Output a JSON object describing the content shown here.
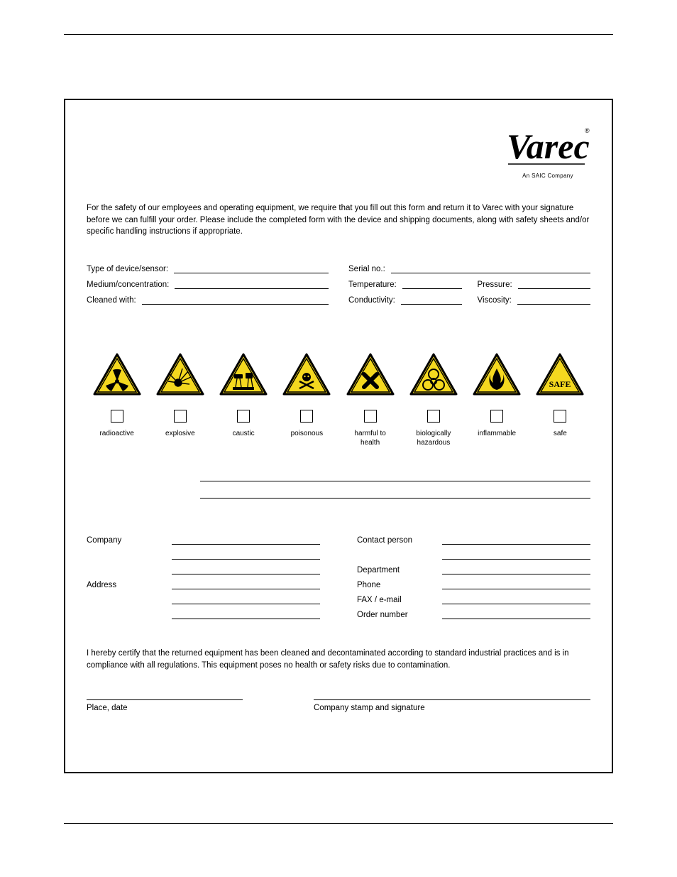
{
  "logo": {
    "word": "Varec",
    "tagline": "An SAIC Company"
  },
  "intro": "For the safety of our employees and operating equipment, we require that you fill out this form and return it to Varec with your signature before we can fulfill your order. Please include the completed form with the device and shipping documents, along with safety sheets and/or specific handling instructions if appropriate.",
  "fields": {
    "left": [
      "Type of device/sensor:",
      "Medium/concentration:",
      "Cleaned with:"
    ],
    "right_row1": "Serial no.:",
    "right_row2_a": "Temperature:",
    "right_row2_b": "Pressure:",
    "right_row3_a": "Conductivity:",
    "right_row3_b": "Viscosity:"
  },
  "hazard_colors": {
    "fill": "#f4d81f",
    "stroke": "#000000"
  },
  "hazards": [
    {
      "key": "radioactive",
      "label": "radioactive"
    },
    {
      "key": "explosive",
      "label": "explosive"
    },
    {
      "key": "caustic",
      "label": "caustic"
    },
    {
      "key": "poisonous",
      "label": "poisonous"
    },
    {
      "key": "harmful",
      "label": "harmful to\nhealth"
    },
    {
      "key": "biohazard",
      "label": "biologically\nhazardous"
    },
    {
      "key": "inflammable",
      "label": "inflammable"
    },
    {
      "key": "safe",
      "label": "safe"
    }
  ],
  "contact": {
    "left": [
      "Company",
      "",
      "",
      "Address",
      "",
      ""
    ],
    "right": [
      "Contact person",
      "",
      "Department",
      "Phone",
      "FAX / e-mail",
      "Order number"
    ]
  },
  "cert": "I hereby certify that the returned equipment has been cleaned and decontaminated according to standard industrial practices and is in compliance with all regulations. This equipment poses no health or safety risks due to contamination.",
  "sig": {
    "place": "Place, date",
    "stamp": "Company stamp and signature"
  },
  "safe_text": "SAFE"
}
